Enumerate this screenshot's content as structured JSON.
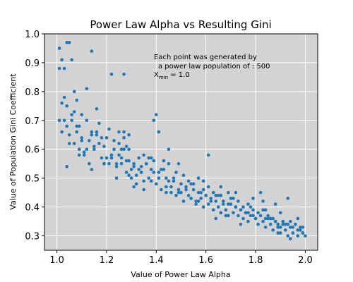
{
  "chart_data": {
    "type": "scatter",
    "title": "Power Law Alpha vs Resulting Gini",
    "xlabel": "Value of Power Law Alpha",
    "ylabel": "Value of Population Gini Coefficient",
    "xlim": [
      0.95,
      2.05
    ],
    "ylim": [
      0.25,
      1.0
    ],
    "xticks": [
      1.0,
      1.2,
      1.4,
      1.6,
      1.8,
      2.0
    ],
    "xtick_labels": [
      "1.0",
      "1.2",
      "1.4",
      "1.6",
      "1.8",
      "2.0"
    ],
    "yticks": [
      0.3,
      0.4,
      0.5,
      0.6,
      0.7,
      0.8,
      0.9,
      1.0
    ],
    "ytick_labels": [
      "0.3",
      "0.4",
      "0.5",
      "0.6",
      "0.7",
      "0.8",
      "0.9",
      "1.0"
    ],
    "grid": true,
    "annotation": {
      "line1": "Each point was generated by",
      "line2": "a power law population of : 500",
      "line3_base": "X",
      "line3_sub": "min",
      "line3_rest": " = 1.0"
    },
    "colors": {
      "plot_background": "#d3d3d3",
      "grid": "#ffffff",
      "marker": "#1f77b4"
    },
    "x": [
      1.01,
      1.02,
      1.03,
      1.04,
      1.05,
      1.06,
      1.07,
      1.08,
      1.1,
      1.12,
      1.14,
      1.16,
      1.22,
      1.27,
      1.01,
      1.01,
      1.02,
      1.03,
      1.04,
      1.04,
      1.05,
      1.06,
      1.07,
      1.08,
      1.09,
      1.1,
      1.11,
      1.12,
      1.13,
      1.14,
      1.15,
      1.16,
      1.17,
      1.18,
      1.19,
      1.2,
      1.21,
      1.22,
      1.23,
      1.24,
      1.25,
      1.26,
      1.27,
      1.28,
      1.29,
      1.3,
      1.31,
      1.32,
      1.33,
      1.34,
      1.35,
      1.36,
      1.37,
      1.38,
      1.39,
      1.4,
      1.41,
      1.42,
      1.43,
      1.44,
      1.45,
      1.46,
      1.47,
      1.48,
      1.49,
      1.5,
      1.51,
      1.52,
      1.53,
      1.54,
      1.55,
      1.56,
      1.57,
      1.58,
      1.59,
      1.6,
      1.61,
      1.62,
      1.63,
      1.64,
      1.65,
      1.66,
      1.67,
      1.68,
      1.69,
      1.7,
      1.71,
      1.72,
      1.73,
      1.74,
      1.75,
      1.76,
      1.77,
      1.78,
      1.79,
      1.8,
      1.81,
      1.82,
      1.83,
      1.84,
      1.85,
      1.86,
      1.87,
      1.88,
      1.89,
      1.9,
      1.91,
      1.92,
      1.93,
      1.94,
      1.95,
      1.96,
      1.97,
      1.98,
      1.99,
      2.0,
      1.03,
      1.05,
      1.07,
      1.09,
      1.11,
      1.13,
      1.15,
      1.17,
      1.19,
      1.21,
      1.23,
      1.25,
      1.27,
      1.29,
      1.31,
      1.33,
      1.35,
      1.37,
      1.39,
      1.41,
      1.43,
      1.45,
      1.47,
      1.49,
      1.51,
      1.53,
      1.55,
      1.57,
      1.59,
      1.61,
      1.63,
      1.65,
      1.67,
      1.69,
      1.71,
      1.73,
      1.75,
      1.77,
      1.79,
      1.81,
      1.83,
      1.85,
      1.87,
      1.89,
      1.91,
      1.93,
      1.95,
      1.97,
      1.99,
      1.02,
      1.06,
      1.1,
      1.14,
      1.18,
      1.22,
      1.26,
      1.3,
      1.34,
      1.38,
      1.42,
      1.46,
      1.5,
      1.54,
      1.58,
      1.62,
      1.66,
      1.7,
      1.74,
      1.78,
      1.82,
      1.86,
      1.9,
      1.94,
      1.98,
      1.08,
      1.12,
      1.16,
      1.2,
      1.24,
      1.28,
      1.32,
      1.36,
      1.4,
      1.44,
      1.48,
      1.52,
      1.56,
      1.6,
      1.64,
      1.68,
      1.72,
      1.76,
      1.8,
      1.84,
      1.88,
      1.92,
      1.96,
      1.04,
      1.09,
      1.14,
      1.19,
      1.24,
      1.29,
      1.34,
      1.39,
      1.44,
      1.49,
      1.54,
      1.59,
      1.64,
      1.69,
      1.74,
      1.79,
      1.84,
      1.89,
      1.94,
      1.99,
      1.25,
      1.27,
      1.29,
      1.31,
      1.26,
      1.28,
      1.35,
      1.38,
      1.41,
      1.45,
      1.57,
      1.61,
      1.66,
      1.72,
      1.77,
      1.83,
      1.88,
      1.93,
      1.97,
      1.86,
      1.9
    ],
    "y": [
      0.95,
      0.91,
      0.88,
      0.97,
      0.97,
      0.91,
      0.8,
      0.77,
      0.72,
      0.81,
      0.94,
      0.74,
      0.86,
      0.86,
      0.88,
      0.7,
      0.76,
      0.78,
      0.75,
      0.68,
      0.65,
      0.72,
      0.62,
      0.66,
      0.6,
      0.64,
      0.58,
      0.7,
      0.55,
      0.65,
      0.6,
      0.66,
      0.62,
      0.57,
      0.61,
      0.64,
      0.55,
      0.58,
      0.6,
      0.54,
      0.62,
      0.57,
      0.6,
      0.52,
      0.56,
      0.5,
      0.54,
      0.51,
      0.57,
      0.52,
      0.49,
      0.55,
      0.5,
      0.53,
      0.52,
      0.48,
      0.5,
      0.46,
      0.53,
      0.45,
      0.49,
      0.47,
      0.5,
      0.44,
      0.46,
      0.48,
      0.42,
      0.47,
      0.44,
      0.43,
      0.46,
      0.41,
      0.45,
      0.43,
      0.4,
      0.44,
      0.41,
      0.43,
      0.39,
      0.42,
      0.4,
      0.38,
      0.42,
      0.39,
      0.37,
      0.41,
      0.38,
      0.4,
      0.37,
      0.39,
      0.36,
      0.38,
      0.35,
      0.37,
      0.39,
      0.36,
      0.34,
      0.37,
      0.35,
      0.33,
      0.36,
      0.34,
      0.32,
      0.35,
      0.33,
      0.31,
      0.34,
      0.32,
      0.3,
      0.33,
      0.31,
      0.34,
      0.3,
      0.32,
      0.31,
      0.3,
      0.7,
      0.62,
      0.73,
      0.68,
      0.59,
      0.63,
      0.61,
      0.69,
      0.55,
      0.67,
      0.63,
      0.58,
      0.66,
      0.6,
      0.55,
      0.53,
      0.58,
      0.57,
      0.7,
      0.52,
      0.56,
      0.55,
      0.49,
      0.55,
      0.51,
      0.49,
      0.48,
      0.5,
      0.46,
      0.47,
      0.45,
      0.44,
      0.41,
      0.45,
      0.43,
      0.42,
      0.4,
      0.41,
      0.43,
      0.38,
      0.39,
      0.37,
      0.36,
      0.34,
      0.35,
      0.34,
      0.33,
      0.32,
      0.31,
      0.66,
      0.7,
      0.63,
      0.66,
      0.64,
      0.57,
      0.6,
      0.53,
      0.54,
      0.57,
      0.53,
      0.45,
      0.45,
      0.48,
      0.45,
      0.42,
      0.47,
      0.43,
      0.39,
      0.4,
      0.45,
      0.36,
      0.33,
      0.35,
      0.33,
      0.68,
      0.6,
      0.65,
      0.57,
      0.5,
      0.56,
      0.48,
      0.55,
      0.72,
      0.47,
      0.52,
      0.46,
      0.42,
      0.44,
      0.44,
      0.37,
      0.4,
      0.38,
      0.36,
      0.39,
      0.35,
      0.34,
      0.34,
      0.54,
      0.58,
      0.53,
      0.55,
      0.55,
      0.51,
      0.52,
      0.56,
      0.5,
      0.45,
      0.43,
      0.49,
      0.36,
      0.41,
      0.34,
      0.37,
      0.36,
      0.31,
      0.29,
      0.33,
      0.66,
      0.64,
      0.65,
      0.47,
      0.55,
      0.61,
      0.46,
      0.49,
      0.66,
      0.6,
      0.42,
      0.58,
      0.44,
      0.45,
      0.38,
      0.42,
      0.41,
      0.43,
      0.36,
      0.36,
      0.38
    ]
  }
}
